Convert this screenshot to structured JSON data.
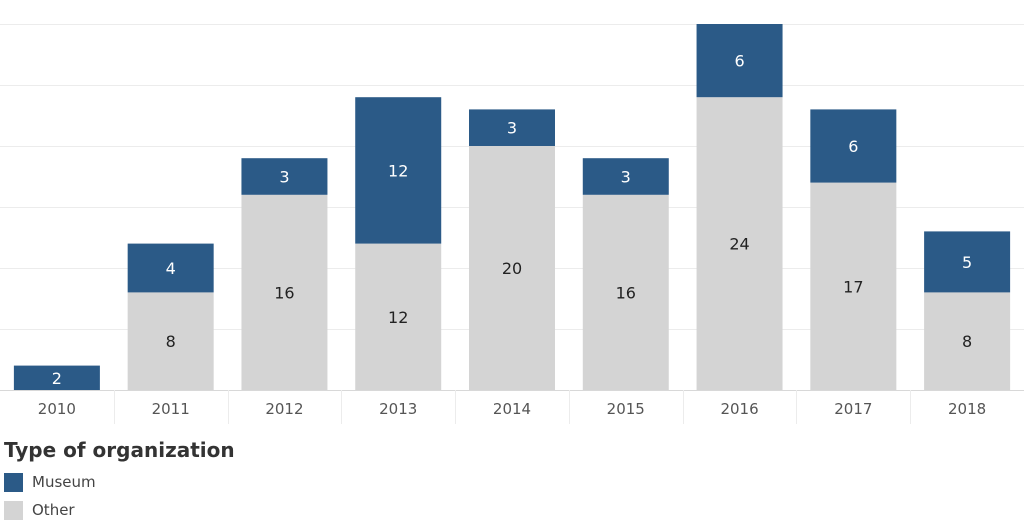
{
  "chart_data": {
    "type": "bar",
    "stacked": true,
    "categories": [
      "2010",
      "2011",
      "2012",
      "2013",
      "2014",
      "2015",
      "2016",
      "2017",
      "2018"
    ],
    "series": [
      {
        "name": "Other",
        "color": "#d4d4d4",
        "values": [
          0,
          8,
          16,
          12,
          20,
          16,
          24,
          17,
          8
        ]
      },
      {
        "name": "Museum",
        "color": "#2b5a87",
        "values": [
          2,
          4,
          3,
          12,
          3,
          3,
          6,
          6,
          5
        ]
      }
    ],
    "ylim": [
      0,
      30
    ],
    "grid": true,
    "legend_position": "bottom-left"
  },
  "legend": {
    "title": "Type of organization",
    "items": [
      {
        "label": "Museum",
        "color": "#2b5a87"
      },
      {
        "label": "Other",
        "color": "#d4d4d4"
      }
    ]
  }
}
